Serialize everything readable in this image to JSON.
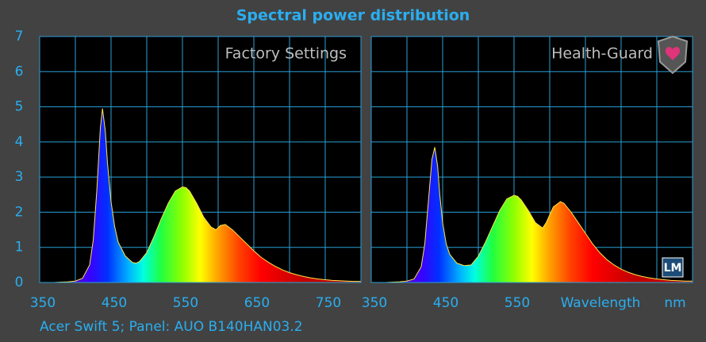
{
  "title": "Spectral power distribution",
  "footer": "Acer Swift 5;  Panel: AUO B140HAN03.2",
  "logo": "LM",
  "chart_data": [
    {
      "type": "area",
      "annotation": "Factory Settings",
      "xlim": [
        350,
        800
      ],
      "ylim": [
        0,
        7
      ],
      "xticks": [
        350,
        450,
        550,
        650,
        750
      ],
      "yticks": [
        0,
        1,
        2,
        3,
        4,
        5,
        6,
        7
      ],
      "grid": true,
      "x": [
        350,
        360,
        370,
        380,
        390,
        400,
        410,
        420,
        425,
        430,
        435,
        438,
        442,
        445,
        450,
        455,
        460,
        470,
        480,
        485,
        490,
        500,
        510,
        520,
        530,
        540,
        550,
        555,
        560,
        570,
        580,
        590,
        597,
        603,
        610,
        620,
        630,
        640,
        650,
        660,
        670,
        680,
        690,
        700,
        710,
        720,
        730,
        740,
        750,
        760,
        770,
        780,
        790,
        800
      ],
      "values": [
        0,
        0,
        0,
        0.01,
        0.02,
        0.04,
        0.12,
        0.5,
        1.2,
        2.6,
        4.4,
        4.95,
        4.3,
        3.4,
        2.3,
        1.6,
        1.15,
        0.75,
        0.57,
        0.55,
        0.6,
        0.85,
        1.3,
        1.8,
        2.25,
        2.6,
        2.72,
        2.7,
        2.6,
        2.25,
        1.85,
        1.58,
        1.5,
        1.62,
        1.65,
        1.5,
        1.3,
        1.1,
        0.9,
        0.72,
        0.58,
        0.46,
        0.36,
        0.28,
        0.22,
        0.17,
        0.13,
        0.1,
        0.08,
        0.06,
        0.05,
        0.04,
        0.03,
        0.03
      ]
    },
    {
      "type": "area",
      "annotation": "Health-Guard",
      "xlabel": "Wavelength",
      "xunit": "nm",
      "xlim": [
        350,
        800
      ],
      "ylim": [
        0,
        7
      ],
      "xticks": [
        350,
        450,
        550
      ],
      "yticks": [
        0,
        1,
        2,
        3,
        4,
        5,
        6,
        7
      ],
      "grid": true,
      "x": [
        350,
        360,
        370,
        380,
        390,
        400,
        410,
        420,
        425,
        430,
        435,
        439,
        443,
        446,
        450,
        455,
        460,
        470,
        480,
        490,
        500,
        510,
        520,
        530,
        540,
        550,
        555,
        560,
        570,
        580,
        590,
        595,
        605,
        615,
        620,
        630,
        640,
        650,
        660,
        670,
        680,
        690,
        700,
        710,
        720,
        730,
        740,
        750,
        760,
        770,
        780,
        790,
        800
      ],
      "values": [
        0,
        0,
        0,
        0.01,
        0.02,
        0.04,
        0.1,
        0.45,
        1.1,
        2.3,
        3.5,
        3.85,
        3.3,
        2.5,
        1.7,
        1.1,
        0.8,
        0.55,
        0.48,
        0.5,
        0.75,
        1.15,
        1.6,
        2.05,
        2.38,
        2.48,
        2.45,
        2.35,
        2.05,
        1.7,
        1.55,
        1.7,
        2.15,
        2.3,
        2.25,
        2.0,
        1.7,
        1.4,
        1.1,
        0.85,
        0.65,
        0.5,
        0.38,
        0.29,
        0.22,
        0.17,
        0.13,
        0.1,
        0.08,
        0.06,
        0.05,
        0.04,
        0.04
      ]
    }
  ]
}
